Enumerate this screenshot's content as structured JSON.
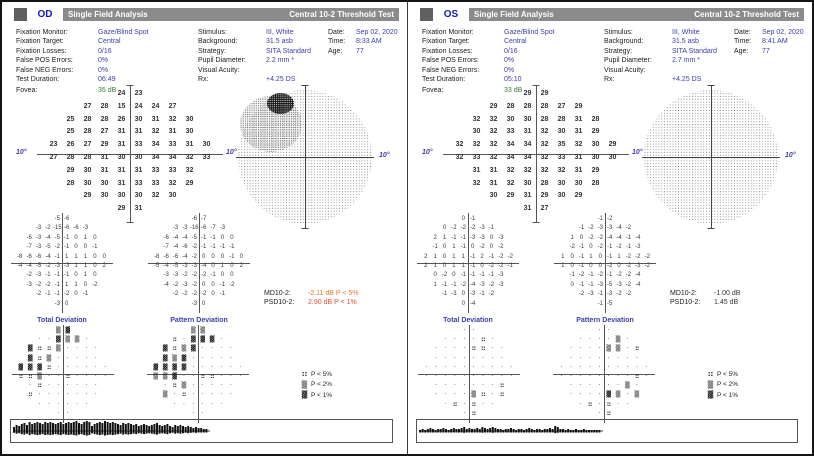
{
  "axis_deg": "10°",
  "legend": {
    "items": [
      {
        "sym": "::",
        "label": "P < 5%"
      },
      {
        "sym": "▒",
        "label": "P < 2%"
      },
      {
        "sym": "▓",
        "label": "P < 1%"
      }
    ]
  },
  "colors": {
    "accent_blue": "#3e3ea8",
    "fovea_green": "#3c7a3c",
    "header_gray": "#8b8b8b",
    "md_flag_orange": "#e0782d",
    "psd_flag_red": "#dc5135",
    "normal_dark": "#333a33"
  },
  "panels": [
    {
      "eye": "OD",
      "title": "Single Field Analysis",
      "test_title": "Central 10-2 Threshold Test",
      "params_col1": [
        {
          "label": "Fixation Monitor:",
          "value": "Gaze/Blind Spot"
        },
        {
          "label": "Fixation Target:",
          "value": "Central"
        },
        {
          "label": "Fixation Losses:",
          "value": "0/16"
        },
        {
          "label": "False POS Errors:",
          "value": "0%"
        },
        {
          "label": "False NEG Errors:",
          "value": "0%"
        },
        {
          "label": "Test Duration:",
          "value": "06:49"
        }
      ],
      "fovea": {
        "label": "Fovea:",
        "value": "35 dB"
      },
      "params_col2": [
        {
          "label": "Stimulus:",
          "value": "III, White"
        },
        {
          "label": "Background:",
          "value": "31.5 asb"
        },
        {
          "label": "Strategy:",
          "value": "SITA Standard"
        },
        {
          "label": "Pupil Diameter:",
          "value": "2.2 mm *"
        },
        {
          "label": "Visual Acuity:",
          "value": ""
        },
        {
          "label": "Rx:",
          "value": "+4.25 DS"
        }
      ],
      "params_col3": [
        {
          "label": "Date:",
          "value": "Sep 02, 2020"
        },
        {
          "label": "Time:",
          "value": "8:33 AM"
        },
        {
          "label": "Age:",
          "value": "77"
        }
      ],
      "threshold_rows": [
        [
          24,
          23
        ],
        [
          27,
          28,
          15,
          24,
          24,
          27
        ],
        [
          25,
          28,
          28,
          26,
          30,
          31,
          32,
          30
        ],
        [
          25,
          28,
          27,
          31,
          31,
          32,
          31,
          30
        ],
        [
          23,
          26,
          27,
          29,
          31,
          33,
          34,
          33,
          31,
          30
        ],
        [
          27,
          28,
          28,
          31,
          30,
          30,
          34,
          34,
          32,
          33
        ],
        [
          29,
          30,
          31,
          31,
          31,
          33,
          33,
          32
        ],
        [
          28,
          30,
          30,
          31,
          33,
          33,
          32,
          29
        ],
        [
          29,
          30,
          30,
          30,
          32,
          30
        ],
        [
          29,
          31
        ]
      ],
      "total_dev_rows": [
        [
          -5,
          -6
        ],
        [
          -3,
          -2,
          -15,
          -6,
          -6,
          -3
        ],
        [
          -6,
          -3,
          -4,
          -5,
          -1,
          0,
          1,
          0
        ],
        [
          -7,
          -3,
          -5,
          -2,
          -1,
          0,
          0,
          -1
        ],
        [
          -8,
          -6,
          -6,
          -4,
          -1,
          1,
          1,
          1,
          0,
          0
        ],
        [
          -4,
          -4,
          -5,
          -2,
          -3,
          -3,
          1,
          1,
          0,
          2
        ],
        [
          -2,
          -3,
          -1,
          -1,
          -1,
          0,
          1,
          0
        ],
        [
          -3,
          -2,
          -2,
          -1,
          1,
          1,
          0,
          -2
        ],
        [
          -2,
          -1,
          -1,
          -2,
          0,
          -1
        ],
        [
          -3,
          0
        ]
      ],
      "pattern_dev_rows": [
        [
          -6,
          -7
        ],
        [
          -3,
          -3,
          -16,
          -6,
          -7,
          -3
        ],
        [
          -6,
          -4,
          -4,
          -5,
          -1,
          -1,
          0,
          0
        ],
        [
          -7,
          -4,
          -6,
          -2,
          -1,
          -1,
          -1,
          -1
        ],
        [
          -8,
          -6,
          -6,
          -4,
          -2,
          0,
          0,
          0,
          -1,
          0
        ],
        [
          -5,
          -4,
          -5,
          -3,
          -3,
          -4,
          0,
          1,
          0,
          2
        ],
        [
          -3,
          -3,
          -2,
          -2,
          -2,
          -1,
          0,
          0
        ],
        [
          -4,
          -2,
          -3,
          -2,
          0,
          0,
          -1,
          -2
        ],
        [
          -2,
          -2,
          -2,
          -2,
          0,
          -1
        ],
        [
          -3,
          0
        ]
      ],
      "prob_total_rows": [
        [
          "2",
          "1"
        ],
        [
          ".",
          ".",
          "1",
          "2",
          "2",
          "."
        ],
        [
          "1",
          ":",
          ":",
          "2",
          ".",
          ".",
          ".",
          "."
        ],
        [
          "1",
          ":",
          "2",
          ".",
          ".",
          ".",
          ".",
          "."
        ],
        [
          "1",
          "1",
          "1",
          ":",
          ".",
          ".",
          ".",
          ".",
          ".",
          "."
        ],
        [
          ":",
          ":",
          "2",
          ".",
          ".",
          ":",
          ".",
          ".",
          ".",
          "."
        ],
        [
          ".",
          ":",
          ".",
          ".",
          ".",
          ".",
          ".",
          "."
        ],
        [
          ":",
          ".",
          ".",
          ".",
          ".",
          ".",
          ".",
          "."
        ],
        [
          ".",
          ".",
          ".",
          ".",
          ".",
          "."
        ],
        [
          ".",
          "."
        ]
      ],
      "prob_pattern_rows": [
        [
          "2",
          "2"
        ],
        [
          ":",
          ".",
          "1",
          "1",
          "1",
          "."
        ],
        [
          "1",
          ":",
          "2",
          "1",
          ".",
          ".",
          ".",
          "."
        ],
        [
          "1",
          "2",
          "1",
          ".",
          ".",
          ".",
          ".",
          "."
        ],
        [
          "1",
          "1",
          "1",
          "1",
          ".",
          ".",
          ".",
          ".",
          ".",
          "."
        ],
        [
          "2",
          "2",
          "1",
          ".",
          ".",
          ":",
          ":",
          ".",
          ".",
          "."
        ],
        [
          ".",
          ":",
          "2",
          ".",
          ".",
          ".",
          ".",
          "."
        ],
        [
          "2",
          ".",
          ":",
          ".",
          ".",
          ".",
          ".",
          "."
        ],
        [
          ".",
          ".",
          ".",
          ".",
          ".",
          "."
        ],
        [
          ".",
          "."
        ]
      ],
      "section_labels": {
        "total": "Total Deviation",
        "pattern": "Pattern Deviation"
      },
      "md": {
        "label": "MD10-2:",
        "value": "-2.11 dB P < 5%",
        "color": "#e0782d"
      },
      "psd": {
        "label": "PSD10-2:",
        "value": "2.90 dB P < 1%",
        "color": "#dc5135"
      },
      "grayscale_defect": true,
      "gaze_amplitudes": [
        4,
        6,
        5,
        7,
        8,
        6,
        9,
        7,
        8,
        9,
        8,
        7,
        9,
        8,
        9,
        8,
        7,
        8,
        9,
        7,
        8,
        9,
        8,
        9,
        10,
        8,
        7,
        9,
        10,
        9,
        5,
        7,
        8,
        9,
        8,
        10,
        9,
        8,
        9,
        8,
        7,
        6,
        8,
        7,
        8,
        7,
        6,
        7,
        5,
        6,
        7,
        6,
        5,
        6,
        7,
        8,
        6,
        5,
        6,
        7,
        5,
        4,
        6,
        5,
        6,
        5,
        4,
        5,
        4,
        3,
        4,
        3,
        3,
        2,
        2
      ]
    },
    {
      "eye": "OS",
      "title": "Single Field Analysis",
      "test_title": "Central 10-2 Threshold Test",
      "params_col1": [
        {
          "label": "Fixation Monitor:",
          "value": "Gaze/Blind Spot"
        },
        {
          "label": "Fixation Target:",
          "value": "Central"
        },
        {
          "label": "Fixation Losses:",
          "value": "0/16"
        },
        {
          "label": "False POS Errors:",
          "value": "0%"
        },
        {
          "label": "False NEG Errors:",
          "value": "0%"
        },
        {
          "label": "Test Duration:",
          "value": "05:10"
        }
      ],
      "fovea": {
        "label": "Fovea:",
        "value": "33 dB"
      },
      "params_col2": [
        {
          "label": "Stimulus:",
          "value": "III, White"
        },
        {
          "label": "Background:",
          "value": "31.5 asb"
        },
        {
          "label": "Strategy:",
          "value": "SITA Standard"
        },
        {
          "label": "Pupil Diameter:",
          "value": "2.7 mm *"
        },
        {
          "label": "Visual Acuity:",
          "value": ""
        },
        {
          "label": "Rx:",
          "value": "+4.25 DS"
        }
      ],
      "params_col3": [
        {
          "label": "Date:",
          "value": "Sep 02, 2020"
        },
        {
          "label": "Time:",
          "value": "8:41 AM"
        },
        {
          "label": "Age:",
          "value": "77"
        }
      ],
      "threshold_rows": [
        [
          29,
          29
        ],
        [
          29,
          28,
          28,
          28,
          27,
          29
        ],
        [
          32,
          32,
          30,
          30,
          28,
          28,
          31,
          28
        ],
        [
          30,
          32,
          33,
          31,
          32,
          30,
          31,
          29
        ],
        [
          32,
          32,
          32,
          34,
          34,
          32,
          35,
          32,
          30,
          29
        ],
        [
          32,
          33,
          32,
          34,
          34,
          32,
          33,
          31,
          30,
          30
        ],
        [
          31,
          31,
          32,
          32,
          32,
          32,
          31,
          29
        ],
        [
          32,
          31,
          32,
          30,
          28,
          30,
          30,
          28
        ],
        [
          30,
          29,
          31,
          29,
          30,
          29
        ],
        [
          31,
          27
        ]
      ],
      "total_dev_rows": [
        [
          0,
          -1
        ],
        [
          0,
          -2,
          -2,
          -2,
          -3,
          -1
        ],
        [
          2,
          1,
          -1,
          -1,
          -3,
          -3,
          0,
          -3
        ],
        [
          -1,
          0,
          1,
          -1,
          0,
          -2,
          0,
          -2
        ],
        [
          2,
          1,
          0,
          1,
          1,
          -1,
          2,
          -1,
          -2,
          -2
        ],
        [
          2,
          1,
          0,
          1,
          1,
          -1,
          0,
          -2,
          -2,
          -1
        ],
        [
          0,
          -2,
          0,
          -1,
          -1,
          -1,
          -1,
          -3
        ],
        [
          1,
          -1,
          -1,
          -2,
          -4,
          -3,
          -2,
          -3
        ],
        [
          -1,
          -3,
          0,
          -3,
          -1,
          -2
        ],
        [
          0,
          -4
        ]
      ],
      "pattern_dev_rows": [
        [
          -1,
          -2
        ],
        [
          -1,
          -2,
          -3,
          -3,
          -4,
          -2
        ],
        [
          1,
          0,
          -2,
          -2,
          -4,
          -4,
          -1,
          -4
        ],
        [
          -2,
          -1,
          0,
          -2,
          -1,
          -2,
          -1,
          -3
        ],
        [
          1,
          0,
          -1,
          1,
          0,
          -1,
          1,
          -2,
          -2,
          -2
        ],
        [
          1,
          0,
          -1,
          0,
          0,
          -2,
          0,
          -2,
          -3,
          -2
        ],
        [
          -1,
          -2,
          -1,
          -2,
          -1,
          -2,
          -2,
          -4
        ],
        [
          0,
          -1,
          -1,
          -3,
          -5,
          -3,
          -2,
          -4
        ],
        [
          -2,
          -3,
          -1,
          -3,
          -2,
          -2
        ],
        [
          -1,
          -5
        ]
      ],
      "prob_total_rows": [
        [
          ".",
          "."
        ],
        [
          ".",
          ".",
          ".",
          ".",
          ":",
          "."
        ],
        [
          ".",
          ".",
          ".",
          ".",
          ":",
          ":",
          ".",
          "."
        ],
        [
          ".",
          ".",
          ".",
          ".",
          ".",
          ".",
          ".",
          "."
        ],
        [
          ".",
          ".",
          ".",
          ".",
          ".",
          ".",
          ".",
          ".",
          ".",
          "."
        ],
        [
          ".",
          ".",
          ".",
          ".",
          ".",
          ".",
          ".",
          ".",
          ".",
          "."
        ],
        [
          ".",
          ".",
          ".",
          ".",
          ".",
          ".",
          ".",
          ":"
        ],
        [
          ".",
          ".",
          ".",
          ".",
          "2",
          ":",
          ".",
          ":"
        ],
        [
          ".",
          ":",
          ".",
          ":",
          ".",
          "."
        ],
        [
          ".",
          ":"
        ]
      ],
      "prob_pattern_rows": [
        [
          ".",
          "."
        ],
        [
          ".",
          ".",
          ".",
          ".",
          "2",
          "."
        ],
        [
          ".",
          ".",
          ".",
          ".",
          "2",
          "2",
          ".",
          ":"
        ],
        [
          ".",
          ".",
          ".",
          ".",
          ".",
          ".",
          ".",
          "."
        ],
        [
          ".",
          ".",
          ".",
          ".",
          ".",
          ".",
          ".",
          ".",
          ".",
          "."
        ],
        [
          ".",
          ".",
          ".",
          ".",
          ".",
          ".",
          ".",
          ".",
          ":",
          "."
        ],
        [
          ".",
          ".",
          ".",
          ".",
          ".",
          ".",
          "2",
          "."
        ],
        [
          ".",
          ".",
          ".",
          ".",
          "1",
          "2",
          ".",
          "2"
        ],
        [
          ".",
          ":",
          ".",
          ":",
          ".",
          "."
        ],
        [
          ".",
          ":"
        ]
      ],
      "section_labels": {
        "total": "Total Deviation",
        "pattern": "Pattern Deviation"
      },
      "md": {
        "label": "MD10-2:",
        "value": "-1.00 dB",
        "color": "#333a33"
      },
      "psd": {
        "label": "PSD10-2:",
        "value": "1.45 dB",
        "color": "#333a33"
      },
      "grayscale_defect": false,
      "gaze_amplitudes": [
        1,
        2,
        1,
        2,
        3,
        2,
        1,
        2,
        2,
        3,
        2,
        1,
        2,
        3,
        2,
        2,
        3,
        4,
        2,
        3,
        2,
        2,
        3,
        2,
        4,
        3,
        2,
        3,
        4,
        3,
        2,
        2,
        1,
        2,
        2,
        3,
        2,
        1,
        2,
        2,
        1,
        2,
        3,
        2,
        1,
        2,
        2,
        1,
        2,
        2,
        3,
        2,
        5,
        4,
        2,
        2,
        1,
        2,
        1,
        1,
        2,
        1,
        1,
        2,
        1,
        1,
        1,
        1,
        1,
        1
      ]
    }
  ]
}
